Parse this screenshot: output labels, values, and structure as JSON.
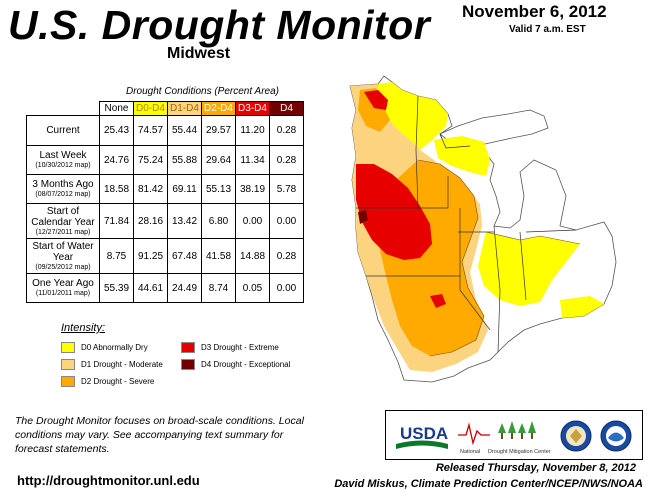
{
  "header": {
    "title": "U.S. Drought Monitor",
    "region": "Midwest",
    "date": "November 6, 2012",
    "valid": "Valid 7 a.m. EST"
  },
  "table": {
    "caption": "Drought Conditions (Percent Area)",
    "columns": [
      "None",
      "D0-D4",
      "D1-D4",
      "D2-D4",
      "D3-D4",
      "D4"
    ],
    "column_colors": [
      "#ffffff",
      "#ffff00",
      "#fcd37f",
      "#ffaa00",
      "#e60000",
      "#730000"
    ],
    "column_text_colors": [
      "#000000",
      "#b08800",
      "#a06800",
      "#ffffff",
      "#ffffff",
      "#ffffff"
    ],
    "rows": [
      {
        "label": "Current",
        "sub": "",
        "values": [
          "25.43",
          "74.57",
          "55.44",
          "29.57",
          "11.20",
          "0.28"
        ]
      },
      {
        "label": "Last Week",
        "sub": "(10/30/2012 map)",
        "values": [
          "24.76",
          "75.24",
          "55.88",
          "29.64",
          "11.34",
          "0.28"
        ]
      },
      {
        "label": "3 Months Ago",
        "sub": "(08/07/2012 map)",
        "values": [
          "18.58",
          "81.42",
          "69.11",
          "55.13",
          "38.19",
          "5.78"
        ]
      },
      {
        "label": "Start of Calendar Year",
        "sub": "(12/27/2011 map)",
        "values": [
          "71.84",
          "28.16",
          "13.42",
          "6.80",
          "0.00",
          "0.00"
        ]
      },
      {
        "label": "Start of Water Year",
        "sub": "(09/25/2012 map)",
        "values": [
          "8.75",
          "91.25",
          "67.48",
          "41.58",
          "14.88",
          "0.28"
        ]
      },
      {
        "label": "One Year Ago",
        "sub": "(11/01/2011 map)",
        "values": [
          "55.39",
          "44.61",
          "24.49",
          "8.74",
          "0.05",
          "0.00"
        ]
      }
    ]
  },
  "legend": {
    "title": "Intensity:",
    "items": [
      {
        "label": "D0 Abnormally Dry",
        "color": "#ffff00"
      },
      {
        "label": "D1 Drought - Moderate",
        "color": "#fcd37f"
      },
      {
        "label": "D2 Drought - Severe",
        "color": "#ffaa00"
      },
      {
        "label": "D3 Drought - Extreme",
        "color": "#e60000"
      },
      {
        "label": "D4 Drought - Exceptional",
        "color": "#730000"
      }
    ]
  },
  "footer": {
    "notes": "The Drought Monitor focuses on broad-scale conditions. Local conditions may vary. See accompanying text summary for forecast statements.",
    "url": "http://droughtmonitor.unl.edu",
    "released": "Released Thursday, November 8, 2012",
    "author": "David Miskus, Climate Prediction Center/NCEP/NWS/NOAA"
  },
  "logos": {
    "usda": "USDA",
    "ndmc_line1": "National",
    "ndmc_line2": "Drought Mitigation Center"
  }
}
